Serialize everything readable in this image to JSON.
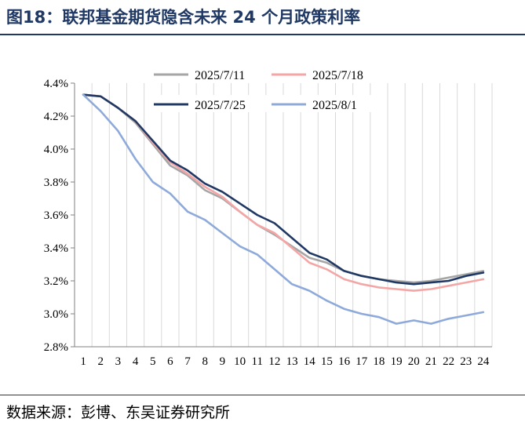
{
  "figure": {
    "title": "图18：联邦基金期货隐含未来 24 个月政策利率",
    "source": "数据来源：彭博、东吴证券研究所"
  },
  "chart_data": {
    "type": "line",
    "title": "",
    "xlabel": "",
    "ylabel": "",
    "x": [
      1,
      2,
      3,
      4,
      5,
      6,
      7,
      8,
      9,
      10,
      11,
      12,
      13,
      14,
      15,
      16,
      17,
      18,
      19,
      20,
      21,
      22,
      23,
      24
    ],
    "x_tick_labels": [
      "1",
      "2",
      "3",
      "4",
      "5",
      "6",
      "7",
      "8",
      "9",
      "10",
      "11",
      "12",
      "13",
      "14",
      "15",
      "16",
      "17",
      "18",
      "19",
      "20",
      "21",
      "22",
      "23",
      "24"
    ],
    "ylim": [
      2.8,
      4.4
    ],
    "y_ticks": [
      2.8,
      3.0,
      3.2,
      3.4,
      3.6,
      3.8,
      4.0,
      4.2,
      4.4
    ],
    "y_tick_labels": [
      "2.8%",
      "3.0%",
      "3.2%",
      "3.4%",
      "3.6%",
      "3.8%",
      "4.0%",
      "4.2%",
      "4.4%"
    ],
    "grid": {
      "vertical": true,
      "horizontal": false
    },
    "legend_position": "top",
    "series": [
      {
        "name": "2025/7/11",
        "color": "#a6a6a6",
        "values": [
          4.33,
          4.32,
          4.25,
          4.16,
          4.03,
          3.9,
          3.84,
          3.75,
          3.7,
          3.62,
          3.54,
          3.48,
          3.41,
          3.34,
          3.31,
          3.26,
          3.23,
          3.21,
          3.2,
          3.19,
          3.2,
          3.22,
          3.24,
          3.26
        ]
      },
      {
        "name": "2025/7/18",
        "color": "#f4a6a6",
        "values": [
          4.33,
          4.32,
          4.25,
          4.17,
          4.04,
          3.92,
          3.85,
          3.77,
          3.71,
          3.62,
          3.54,
          3.49,
          3.4,
          3.31,
          3.27,
          3.21,
          3.18,
          3.16,
          3.15,
          3.14,
          3.15,
          3.17,
          3.19,
          3.21
        ]
      },
      {
        "name": "2025/7/25",
        "color": "#1f3864",
        "values": [
          4.33,
          4.32,
          4.25,
          4.17,
          4.05,
          3.93,
          3.87,
          3.79,
          3.74,
          3.67,
          3.6,
          3.55,
          3.46,
          3.37,
          3.33,
          3.26,
          3.23,
          3.21,
          3.19,
          3.18,
          3.19,
          3.2,
          3.23,
          3.25
        ]
      },
      {
        "name": "2025/8/1",
        "color": "#8eaadb",
        "values": [
          4.33,
          4.23,
          4.11,
          3.94,
          3.8,
          3.73,
          3.62,
          3.57,
          3.49,
          3.41,
          3.36,
          3.27,
          3.18,
          3.14,
          3.08,
          3.03,
          3.0,
          2.98,
          2.94,
          2.96,
          2.94,
          2.97,
          2.99,
          3.01
        ]
      }
    ]
  }
}
